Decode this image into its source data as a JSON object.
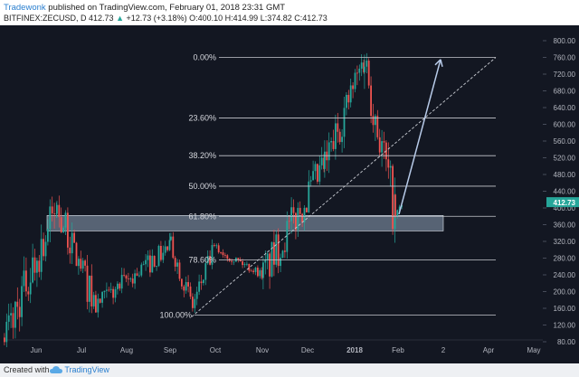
{
  "header": {
    "author": "Tradewonk",
    "published_text": "published on TradingView.com, February 01, 2018 23:31 GMT",
    "symbol_line": "BITFINEX:ZECUSD, D",
    "last": "412.73",
    "change": "+12.73 (+3.18%)",
    "open": "O:400.10",
    "high": "H:414.99",
    "low": "L:374.82",
    "close": "C:412.73"
  },
  "footer": {
    "created_with": "Created with",
    "brand": "TradingView"
  },
  "colors": {
    "bg": "#131722",
    "up": "#26a69a",
    "down": "#ef5350",
    "fib": "#c7c9cf",
    "zone": "#8fa3b8",
    "arrow": "#b8cbe9"
  },
  "chart_data": {
    "type": "candlestick",
    "symbol": "BITFINEX:ZECUSD",
    "interval": "D",
    "price_axis": {
      "min": 60,
      "max": 820,
      "ticks": [
        "800.00",
        "760.00",
        "720.00",
        "680.00",
        "640.00",
        "600.00",
        "560.00",
        "520.00",
        "480.00",
        "440.00",
        "400.00",
        "360.00",
        "320.00",
        "280.00",
        "240.00",
        "200.00",
        "160.00",
        "120.00",
        "80.00"
      ]
    },
    "last_price_label": "412.73",
    "time_axis": {
      "labels": [
        "Jun",
        "Jul",
        "Aug",
        "Sep",
        "Oct",
        "Nov",
        "Dec",
        "2018",
        "Feb",
        "2",
        "Apr",
        "May"
      ]
    },
    "fib_levels": [
      {
        "label": "0.00%",
        "price": 760
      },
      {
        "label": "23.60%",
        "price": 615
      },
      {
        "label": "38.20%",
        "price": 525
      },
      {
        "label": "50.00%",
        "price": 452
      },
      {
        "label": "61.80%",
        "price": 380
      },
      {
        "label": "78.60%",
        "price": 276
      },
      {
        "label": "100.00%",
        "price": 144
      }
    ],
    "support_zone": {
      "low": 345,
      "high": 382
    },
    "key_prices": [
      {
        "date": "late May",
        "price": 90
      },
      {
        "date": "mid Jun",
        "price": 400
      },
      {
        "date": "early Jul",
        "price": 165
      },
      {
        "date": "early Sep",
        "price": 310
      },
      {
        "date": "mid Sep",
        "price": 165
      },
      {
        "date": "early Oct",
        "price": 305
      },
      {
        "date": "mid Nov",
        "price": 240
      },
      {
        "date": "mid Dec",
        "price": 500
      },
      {
        "date": "early Jan",
        "price": 760
      },
      {
        "date": "late Jan",
        "price": 380
      },
      {
        "date": "Feb 01",
        "price": 412.73
      }
    ]
  }
}
